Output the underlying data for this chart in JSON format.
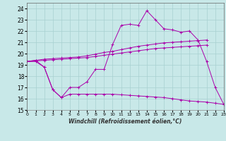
{
  "title": "",
  "xlabel": "Windchill (Refroidissement éolien,°C)",
  "background_color": "#c8e8e8",
  "line_color": "#aa00aa",
  "xlim": [
    0,
    23
  ],
  "ylim": [
    15,
    24.5
  ],
  "yticks": [
    15,
    16,
    17,
    18,
    19,
    20,
    21,
    22,
    23,
    24
  ],
  "xticks": [
    0,
    1,
    2,
    3,
    4,
    5,
    6,
    7,
    8,
    9,
    10,
    11,
    12,
    13,
    14,
    15,
    16,
    17,
    18,
    19,
    20,
    21,
    22,
    23
  ],
  "series": [
    {
      "x": [
        0,
        1,
        2,
        3,
        4,
        5,
        6,
        7,
        8,
        9,
        10,
        11,
        12,
        13,
        14,
        15,
        16,
        17,
        18,
        19,
        20,
        21,
        22,
        23
      ],
      "y": [
        19.3,
        19.4,
        18.8,
        16.8,
        16.1,
        17.0,
        17.0,
        17.5,
        18.6,
        18.6,
        20.8,
        22.5,
        22.6,
        22.5,
        23.8,
        23.0,
        22.2,
        22.1,
        21.9,
        22.0,
        21.2,
        19.3,
        17.0,
        15.5
      ],
      "has_markers": true
    },
    {
      "x": [
        0,
        1,
        2,
        3,
        4,
        5,
        6,
        7,
        8,
        9,
        10,
        11,
        12,
        13,
        14,
        15,
        16,
        17,
        18,
        19,
        20,
        21
      ],
      "y": [
        19.3,
        19.4,
        19.5,
        19.55,
        19.6,
        19.65,
        19.7,
        19.8,
        19.95,
        20.1,
        20.2,
        20.35,
        20.5,
        20.65,
        20.75,
        20.85,
        20.95,
        21.0,
        21.05,
        21.1,
        21.15,
        21.2
      ],
      "has_markers": true
    },
    {
      "x": [
        0,
        1,
        2,
        3,
        4,
        5,
        6,
        7,
        8,
        9,
        10,
        11,
        12,
        13,
        14,
        15,
        16,
        17,
        18,
        19,
        20,
        21
      ],
      "y": [
        19.3,
        19.35,
        19.4,
        19.45,
        19.5,
        19.55,
        19.6,
        19.65,
        19.75,
        19.85,
        19.95,
        20.05,
        20.15,
        20.25,
        20.35,
        20.45,
        20.5,
        20.55,
        20.6,
        20.65,
        20.7,
        20.75
      ],
      "has_markers": true
    },
    {
      "x": [
        0,
        1,
        2,
        3,
        4,
        5,
        6,
        7,
        8,
        9,
        10,
        11,
        12,
        13,
        14,
        15,
        16,
        17,
        18,
        19,
        20,
        21,
        22,
        23
      ],
      "y": [
        19.3,
        19.3,
        18.8,
        16.8,
        16.1,
        16.4,
        16.4,
        16.4,
        16.4,
        16.4,
        16.4,
        16.35,
        16.3,
        16.25,
        16.2,
        16.15,
        16.1,
        16.0,
        15.9,
        15.8,
        15.75,
        15.7,
        15.6,
        15.5
      ],
      "has_markers": true
    }
  ]
}
